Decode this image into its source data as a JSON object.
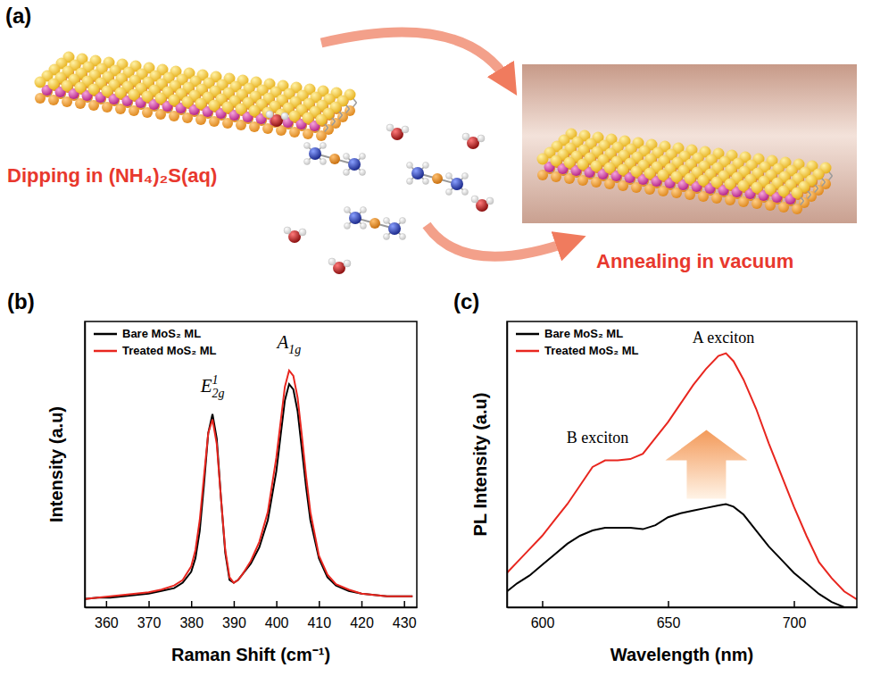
{
  "diagram": {
    "panel": "(a)",
    "steps": [
      "Dipping in (NH₄)₂S(aq)",
      "Annealing in vacuum"
    ]
  },
  "chart_data": [
    {
      "type": "line",
      "panel": "(b)",
      "x_label": "Raman Shift (cm⁻¹)",
      "y_label": "Intensity (a.u)",
      "xlim": [
        355,
        433
      ],
      "ylim": [
        0,
        1.05
      ],
      "xticks": [
        360,
        370,
        380,
        390,
        400,
        410,
        420,
        430
      ],
      "tick_labels": "x",
      "legend": "upper left",
      "x": [
        355,
        358,
        361,
        364,
        367,
        370,
        373,
        376,
        378,
        380,
        381,
        382,
        383,
        384,
        385,
        386,
        387,
        388,
        389,
        390,
        391,
        392,
        394,
        396,
        398,
        400,
        401,
        402,
        403,
        404,
        405,
        406,
        407,
        408,
        410,
        412,
        414,
        417,
        420,
        423,
        426,
        429,
        432
      ],
      "series": [
        {
          "name": "Bare MoS₂ ML",
          "color": "#000000",
          "values": [
            0.03,
            0.035,
            0.035,
            0.04,
            0.045,
            0.05,
            0.06,
            0.07,
            0.09,
            0.13,
            0.18,
            0.28,
            0.45,
            0.64,
            0.71,
            0.62,
            0.4,
            0.2,
            0.1,
            0.09,
            0.1,
            0.12,
            0.16,
            0.22,
            0.32,
            0.5,
            0.63,
            0.76,
            0.82,
            0.8,
            0.72,
            0.58,
            0.44,
            0.32,
            0.18,
            0.11,
            0.08,
            0.06,
            0.05,
            0.045,
            0.04,
            0.04,
            0.04
          ]
        },
        {
          "name": "Treated MoS₂ ML",
          "color": "#e8261f",
          "values": [
            0.03,
            0.035,
            0.04,
            0.045,
            0.05,
            0.055,
            0.065,
            0.08,
            0.1,
            0.15,
            0.21,
            0.32,
            0.48,
            0.64,
            0.69,
            0.6,
            0.4,
            0.21,
            0.11,
            0.09,
            0.1,
            0.12,
            0.17,
            0.24,
            0.35,
            0.55,
            0.68,
            0.81,
            0.87,
            0.85,
            0.77,
            0.63,
            0.48,
            0.35,
            0.19,
            0.12,
            0.085,
            0.065,
            0.05,
            0.045,
            0.04,
            0.04,
            0.04
          ]
        }
      ],
      "annotations": [
        {
          "base": "E",
          "sub": "2g",
          "sup": "1",
          "x": 385,
          "y": 0.79
        },
        {
          "base": "A",
          "sub": "1g",
          "x": 403,
          "y": 0.95
        }
      ]
    },
    {
      "type": "line",
      "panel": "(c)",
      "x_label": "Wavelength (nm)",
      "y_label": "PL Intensity (a.u)",
      "xlim": [
        586,
        725
      ],
      "ylim": [
        0,
        1.08
      ],
      "xticks": [
        600,
        650,
        700
      ],
      "tick_labels": "x",
      "legend": "upper left",
      "x": [
        586,
        590,
        595,
        600,
        605,
        610,
        615,
        620,
        625,
        630,
        635,
        640,
        645,
        650,
        655,
        660,
        665,
        670,
        673,
        676,
        680,
        685,
        690,
        695,
        700,
        705,
        710,
        715,
        720,
        725
      ],
      "series": [
        {
          "name": "Bare MoS₂ ML",
          "color": "#000000",
          "values": [
            0.06,
            0.09,
            0.12,
            0.16,
            0.2,
            0.24,
            0.27,
            0.29,
            0.3,
            0.3,
            0.3,
            0.295,
            0.31,
            0.34,
            0.355,
            0.365,
            0.375,
            0.385,
            0.39,
            0.38,
            0.35,
            0.29,
            0.23,
            0.18,
            0.13,
            0.09,
            0.05,
            0.02,
            0.0,
            0.0
          ]
        },
        {
          "name": "Treated MoS₂ ML",
          "color": "#e8261f",
          "values": [
            0.13,
            0.17,
            0.22,
            0.27,
            0.33,
            0.39,
            0.46,
            0.53,
            0.555,
            0.555,
            0.56,
            0.58,
            0.64,
            0.7,
            0.77,
            0.84,
            0.9,
            0.95,
            0.96,
            0.93,
            0.86,
            0.75,
            0.62,
            0.5,
            0.38,
            0.27,
            0.17,
            0.11,
            0.06,
            0.03
          ]
        }
      ],
      "annotations": [
        {
          "text": "B exciton",
          "x": 622,
          "y": 0.62
        },
        {
          "text": "A exciton",
          "x": 672,
          "y": 1.0
        }
      ]
    }
  ]
}
